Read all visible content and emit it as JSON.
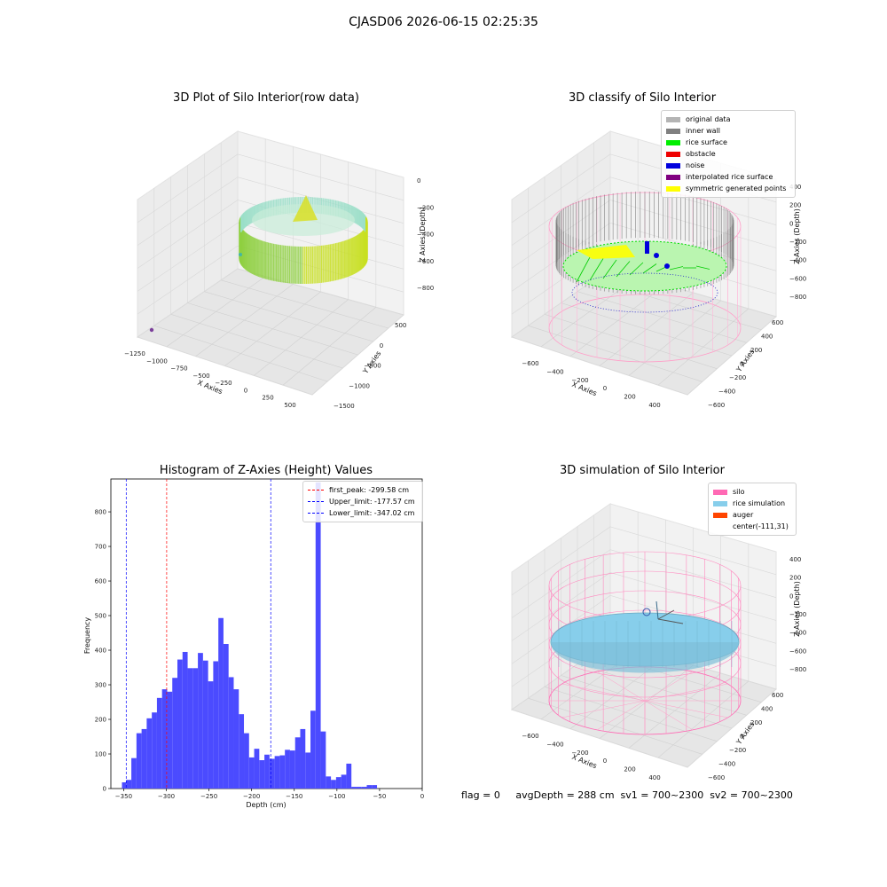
{
  "suptitle": "CJASD06 2026-06-15 02:25:35",
  "panels": {
    "raw": {
      "title": "3D Plot of Silo Interior(row data)",
      "xlabel": "X Axies",
      "ylabel": "Y Axies",
      "zlabel": "Z Axies (Depth)",
      "xticks": [
        "−1250",
        "−1000",
        "−750",
        "−500",
        "−250",
        "0",
        "250",
        "500"
      ],
      "yticks": [
        "500",
        "0",
        "−500",
        "−1000",
        "−1500"
      ],
      "zticks": [
        "0",
        "−200",
        "−400",
        "−600",
        "−800"
      ]
    },
    "classify": {
      "title": "3D classify of Silo Interior",
      "xlabel": "X Axies",
      "ylabel": "Y Axies",
      "zlabel": "Z Axies (Depth)",
      "xticks": [
        "−600",
        "−400",
        "−200",
        "0",
        "200",
        "400"
      ],
      "yticks": [
        "600",
        "400",
        "200",
        "0",
        "−200",
        "−400",
        "−600"
      ],
      "zticks": [
        "400",
        "200",
        "0",
        "−200",
        "−400",
        "−600",
        "−800"
      ],
      "legend": [
        {
          "label": "original data",
          "color": "#b4b4b4"
        },
        {
          "label": "inner wall",
          "color": "#808080"
        },
        {
          "label": "rice surface",
          "color": "#00ee00"
        },
        {
          "label": "obstacle",
          "color": "#ee0000"
        },
        {
          "label": "noise",
          "color": "#0000dd"
        },
        {
          "label": "interpolated rice surface",
          "color": "#800080"
        },
        {
          "label": "symmetric generated points",
          "color": "#ffff00"
        }
      ]
    },
    "simulation": {
      "title": "3D simulation of Silo Interior",
      "xlabel": "X Axies",
      "ylabel": "Y Axies",
      "zlabel": "Z Axies (Depth)",
      "xticks": [
        "−600",
        "−400",
        "−200",
        "0",
        "200",
        "400"
      ],
      "yticks": [
        "600",
        "400",
        "200",
        "0",
        "−200",
        "−400",
        "−600"
      ],
      "zticks": [
        "400",
        "200",
        "0",
        "−200",
        "−400",
        "−600",
        "−800"
      ],
      "legend": [
        {
          "label": "silo",
          "color": "#ff69b4"
        },
        {
          "label": "rice simulation",
          "color": "#87ceeb"
        },
        {
          "label": "auger",
          "color": "#ff4500"
        },
        {
          "label": "center(-111,31)",
          "color": ""
        }
      ]
    }
  },
  "footer": "flag = 0     avgDepth = 288 cm  sv1 = 700~2300  sv2 = 700~2300",
  "chart_data": {
    "type": "bar",
    "title": "Histogram of Z-Axies (Height) Values",
    "xlabel": "Depth (cm)",
    "ylabel": "Frequency",
    "xlim": [
      -365,
      0
    ],
    "ylim": [
      0,
      895
    ],
    "xticks": [
      -350,
      -300,
      -250,
      -200,
      -150,
      -100,
      -50,
      0
    ],
    "xtick_labels": [
      "−350",
      "−300",
      "−250",
      "−200",
      "−150",
      "−100",
      "−50",
      "0"
    ],
    "yticks": [
      0,
      100,
      200,
      300,
      400,
      500,
      600,
      700,
      800
    ],
    "bar_color": "#4b4bff",
    "bins": [
      [
        -352,
        -347,
        18
      ],
      [
        -347,
        -341,
        25
      ],
      [
        -341,
        -335,
        88
      ],
      [
        -335,
        -329,
        160
      ],
      [
        -329,
        -323,
        172
      ],
      [
        -323,
        -317,
        203
      ],
      [
        -317,
        -311,
        220
      ],
      [
        -311,
        -305,
        262
      ],
      [
        -305,
        -299,
        287
      ],
      [
        -299,
        -293,
        280
      ],
      [
        -293,
        -287,
        320
      ],
      [
        -287,
        -281,
        373
      ],
      [
        -281,
        -275,
        395
      ],
      [
        -275,
        -269,
        348
      ],
      [
        -269,
        -263,
        348
      ],
      [
        -263,
        -257,
        392
      ],
      [
        -257,
        -251,
        370
      ],
      [
        -251,
        -245,
        310
      ],
      [
        -245,
        -239,
        368
      ],
      [
        -239,
        -233,
        493
      ],
      [
        -233,
        -227,
        418
      ],
      [
        -227,
        -221,
        322
      ],
      [
        -221,
        -215,
        287
      ],
      [
        -215,
        -209,
        215
      ],
      [
        -209,
        -203,
        160
      ],
      [
        -203,
        -197,
        90
      ],
      [
        -197,
        -191,
        115
      ],
      [
        -191,
        -185,
        82
      ],
      [
        -185,
        -179,
        98
      ],
      [
        -179,
        -173,
        86
      ],
      [
        -173,
        -167,
        94
      ],
      [
        -167,
        -161,
        96
      ],
      [
        -161,
        -155,
        112
      ],
      [
        -155,
        -149,
        110
      ],
      [
        -149,
        -143,
        148
      ],
      [
        -143,
        -137,
        172
      ],
      [
        -137,
        -131,
        104
      ],
      [
        -131,
        -125,
        225
      ],
      [
        -125,
        -119,
        885
      ],
      [
        -119,
        -113,
        165
      ],
      [
        -113,
        -107,
        35
      ],
      [
        -107,
        -101,
        25
      ],
      [
        -101,
        -95,
        33
      ],
      [
        -95,
        -89,
        40
      ],
      [
        -89,
        -83,
        72
      ],
      [
        -83,
        -77,
        5
      ],
      [
        -77,
        -71,
        5
      ],
      [
        -71,
        -65,
        5
      ],
      [
        -65,
        -59,
        10
      ],
      [
        -59,
        -53,
        10
      ]
    ],
    "vlines": [
      {
        "label": "first_peak: -299.58 cm",
        "x": -299.58,
        "color": "#ff0000"
      },
      {
        "label": "Upper_limit: -177.57 cm",
        "x": -177.57,
        "color": "#0000ff"
      },
      {
        "label": "Lower_limit: -347.02 cm",
        "x": -347.02,
        "color": "#0000ff"
      }
    ]
  }
}
